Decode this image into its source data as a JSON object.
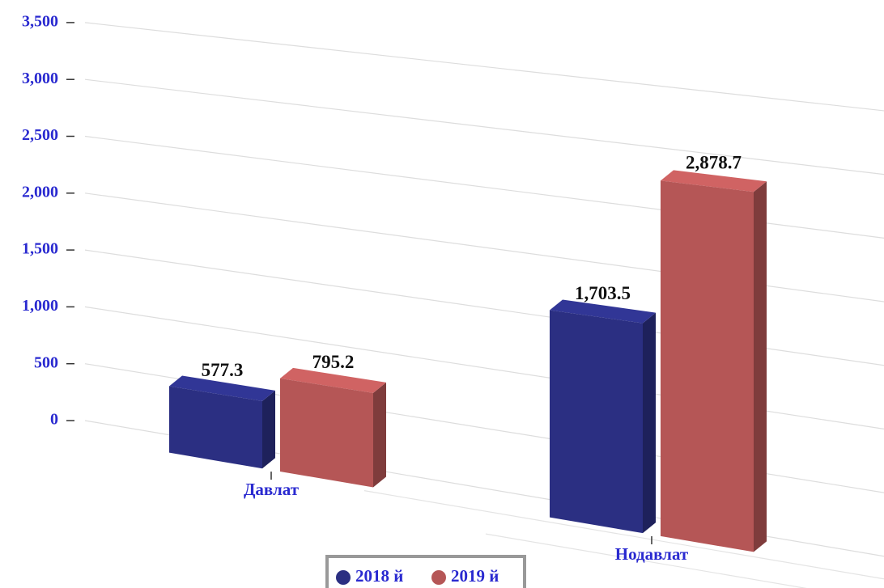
{
  "chart_data": {
    "type": "bar3d",
    "categories": [
      "Давлат",
      "Нодавлат"
    ],
    "series": [
      {
        "name": "2018 й",
        "color": "#2b2f82",
        "values": [
          577.3,
          1703.5
        ],
        "value_labels": [
          "577.3",
          "1,703.5"
        ]
      },
      {
        "name": "2019 й",
        "color": "#b55656",
        "values": [
          795.2,
          2878.7
        ],
        "value_labels": [
          "795.2",
          "2,878.7"
        ]
      }
    ],
    "ylim": [
      0,
      3500
    ],
    "yticks": [
      0,
      500,
      {
        "value": 1000,
        "label": "1,000"
      },
      {
        "value": 1500,
        "label": "1,500"
      },
      {
        "value": 2000,
        "label": "2,000"
      },
      {
        "value": 2500,
        "label": "2,500"
      },
      {
        "value": 3000,
        "label": "3,000"
      },
      {
        "value": 3500,
        "label": "3,500"
      }
    ],
    "grid": true,
    "legend": "bottom"
  }
}
